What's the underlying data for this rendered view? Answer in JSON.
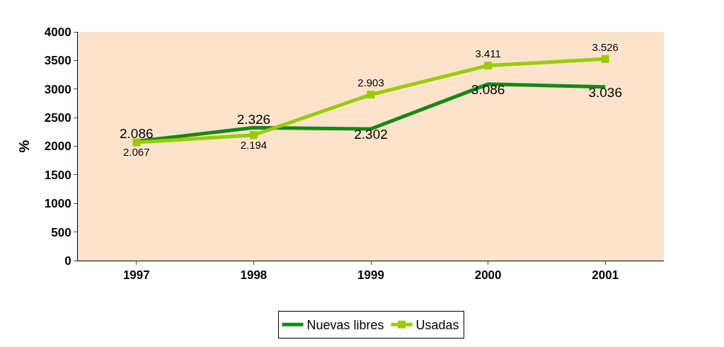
{
  "chart_data": {
    "type": "line",
    "ylabel": "%",
    "categories": [
      "1997",
      "1998",
      "1999",
      "2000",
      "2001"
    ],
    "series": [
      {
        "name": "Nuevas libres",
        "color": "#128a12",
        "values": [
          2086,
          2326,
          2302,
          3086,
          3036
        ],
        "value_labels": [
          "2.086",
          "2.326",
          "2.302",
          "3.086",
          "3.036"
        ],
        "marker": "none"
      },
      {
        "name": "Usadas",
        "color": "#99cc00",
        "values": [
          2067,
          2194,
          2903,
          3411,
          3526
        ],
        "value_labels": [
          "2.067",
          "2.194",
          "2.903",
          "3.411",
          "3.526"
        ],
        "marker": "square"
      }
    ],
    "ylim": [
      0,
      4000
    ],
    "yticks": [
      0,
      500,
      1000,
      1500,
      2000,
      2500,
      3000,
      3500,
      4000
    ],
    "grid": false,
    "legend": "bottom"
  }
}
